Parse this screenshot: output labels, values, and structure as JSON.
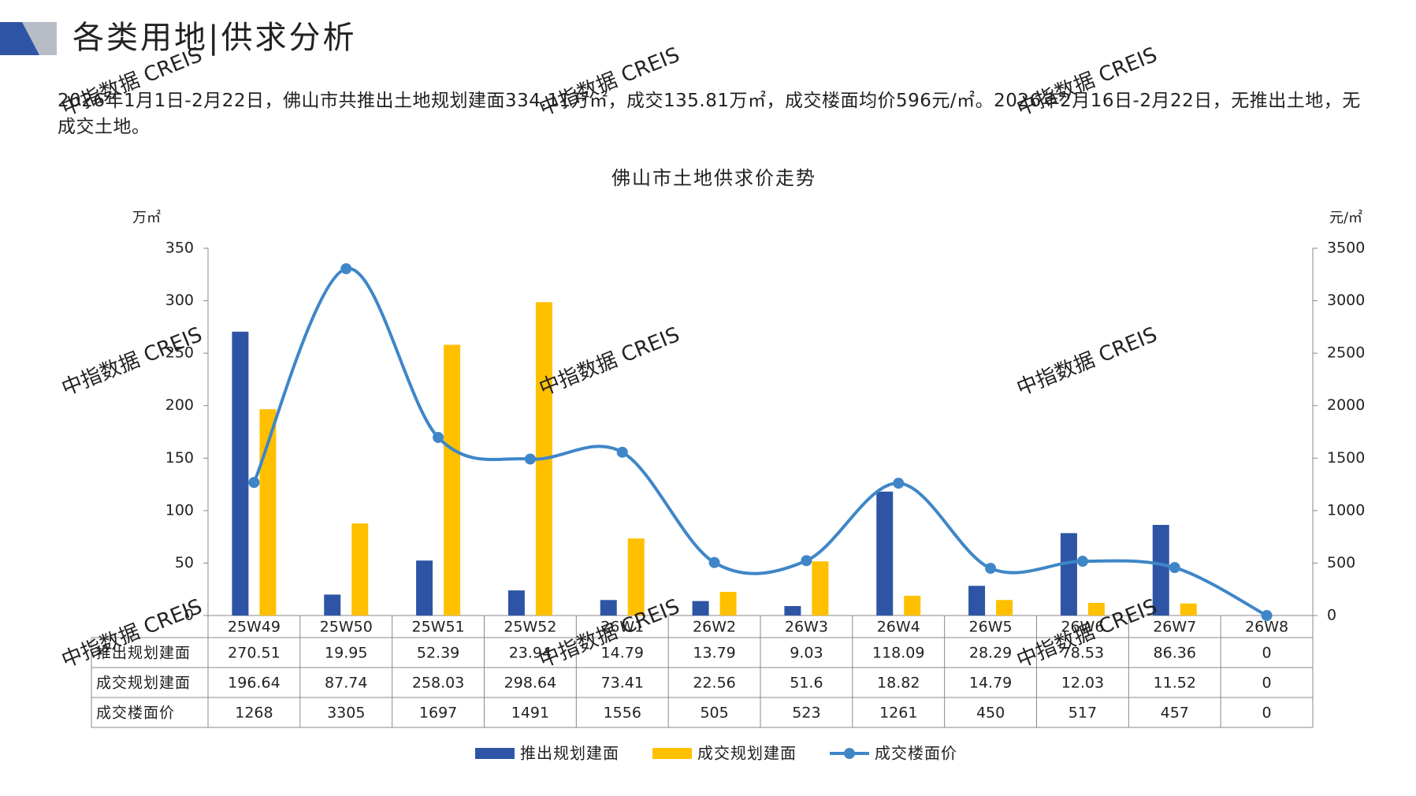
{
  "header": {
    "title": "各类用地|供求分析",
    "description": "2026年1月1日-2月22日，佛山市共推出土地规划建面334.11万㎡，成交135.81万㎡，成交楼面均价596元/㎡。2026年2月16日-2月22日，无推出土地，无成交土地。"
  },
  "watermark": "中指数据 CREIS",
  "chart_data": {
    "type": "bar",
    "title": "佛山市土地供求价走势",
    "y_label": "万㎡",
    "y2_label": "元/㎡",
    "categories": [
      "25W49",
      "25W50",
      "25W51",
      "25W52",
      "26W1",
      "26W2",
      "26W3",
      "26W4",
      "26W5",
      "26W6",
      "26W7",
      "26W8"
    ],
    "series": [
      {
        "name": "推出规划建面",
        "type": "bar",
        "color": "#2e55a5",
        "values": [
          270.51,
          19.95,
          52.39,
          23.94,
          14.79,
          13.79,
          9.03,
          118.09,
          28.29,
          78.53,
          86.36,
          0
        ]
      },
      {
        "name": "成交规划建面",
        "type": "bar",
        "color": "#ffc000",
        "values": [
          196.64,
          87.74,
          258.03,
          298.64,
          73.41,
          22.56,
          51.6,
          18.82,
          14.79,
          12.03,
          11.52,
          0
        ]
      },
      {
        "name": "成交楼面价",
        "type": "line",
        "axis": "y2",
        "color": "#3f86c8",
        "values": [
          1268,
          3305,
          1697,
          1491,
          1556,
          505,
          523,
          1261,
          450,
          517,
          457,
          0
        ]
      }
    ],
    "ylim": [
      0,
      350
    ],
    "yticks": [
      0,
      50,
      100,
      150,
      200,
      250,
      300,
      350
    ],
    "y2lim": [
      0,
      3500
    ],
    "y2ticks": [
      0,
      500,
      1000,
      1500,
      2000,
      2500,
      3000,
      3500
    ],
    "legend": "bottom",
    "data_table": true
  }
}
